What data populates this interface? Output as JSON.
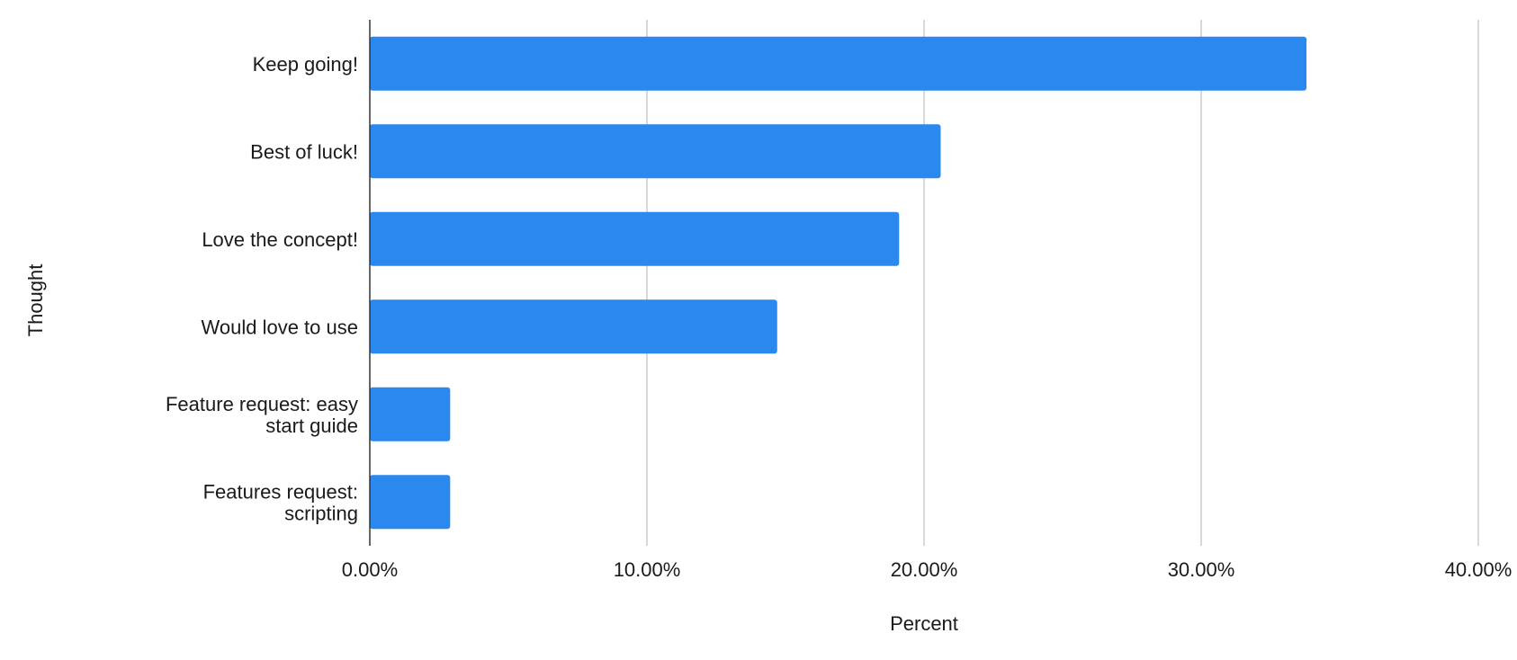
{
  "chart_data": {
    "type": "bar",
    "orientation": "horizontal",
    "title": "",
    "xlabel": "Percent",
    "ylabel": "Thought",
    "xlim": [
      0,
      40
    ],
    "x_ticks": [
      "0.00%",
      "10.00%",
      "20.00%",
      "30.00%",
      "40.00%"
    ],
    "grid": true,
    "legend": "none",
    "bar_color": "#2a88ee",
    "categories": [
      "Keep going!",
      "Best of luck!",
      "Love the concept!",
      "Would love to use",
      "Feature request: easy start guide",
      "Features request: scripting"
    ],
    "values": [
      33.8,
      20.6,
      19.1,
      14.7,
      2.9,
      2.9
    ]
  }
}
